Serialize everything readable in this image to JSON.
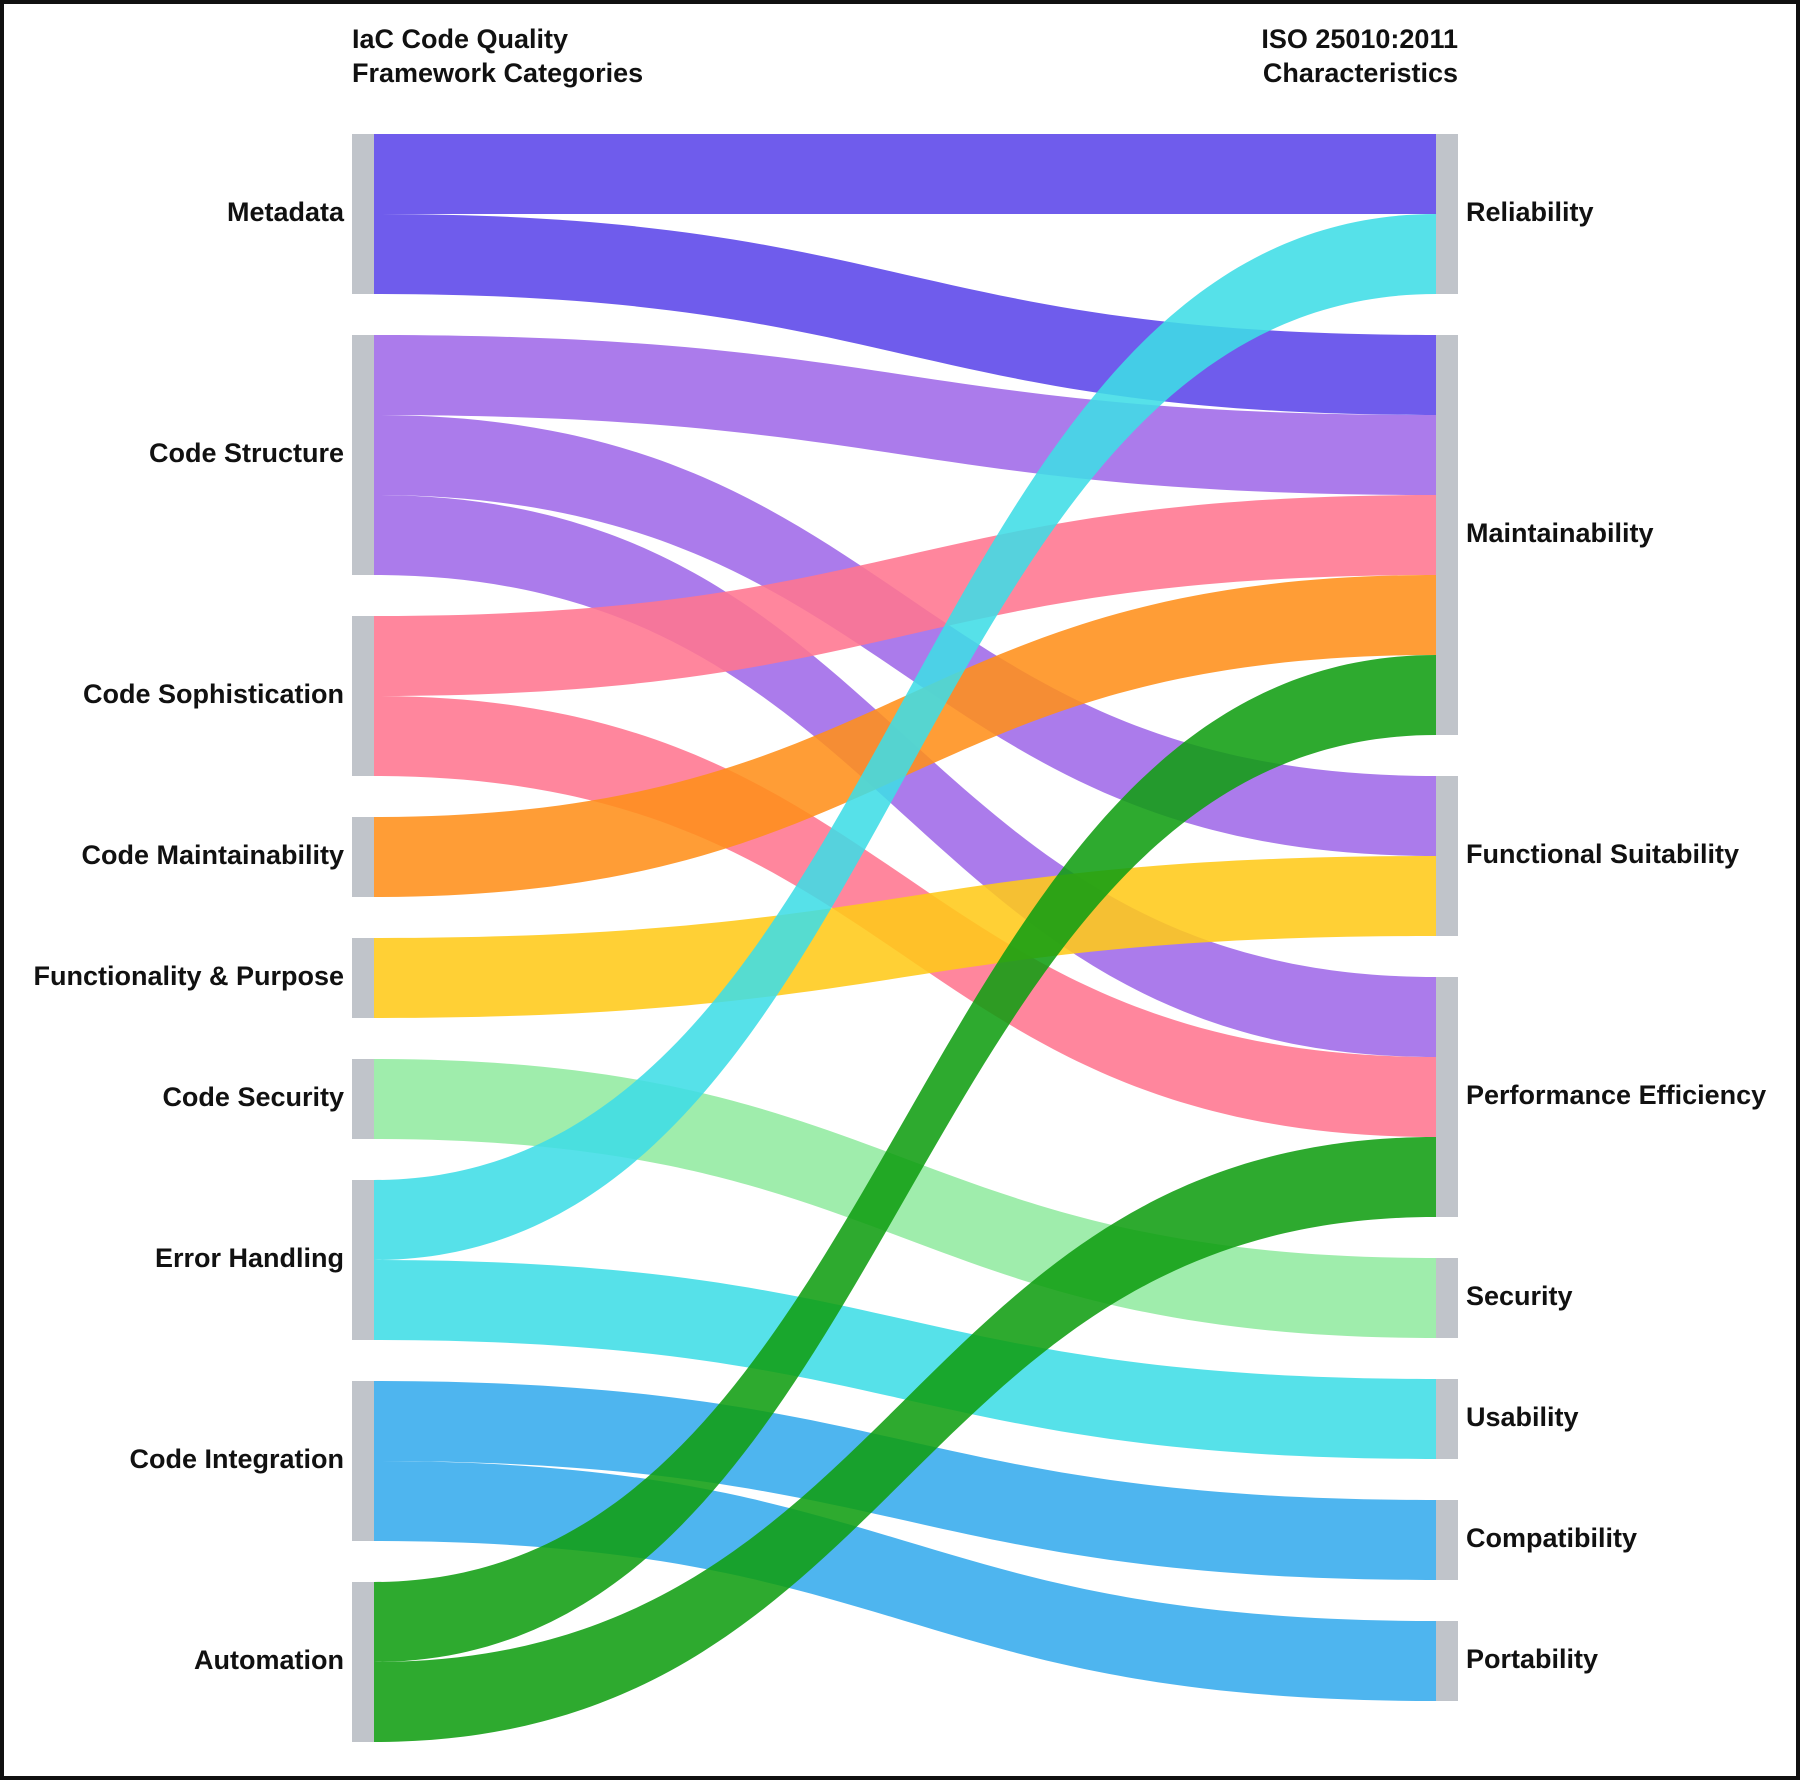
{
  "diagram": {
    "type": "sankey",
    "left_title": [
      "IaC Code Quality",
      "Framework Categories"
    ],
    "right_title": [
      "ISO 25010:2011",
      "Characteristics"
    ],
    "node_color": "#c0c4ca",
    "left_nodes": [
      {
        "id": "metadata",
        "label": "Metadata"
      },
      {
        "id": "code-structure",
        "label": "Code Structure"
      },
      {
        "id": "code-sophistication",
        "label": "Code Sophistication"
      },
      {
        "id": "code-maintainability",
        "label": "Code Maintainability"
      },
      {
        "id": "functionality-purpose",
        "label": "Functionality & Purpose"
      },
      {
        "id": "code-security",
        "label": "Code Security"
      },
      {
        "id": "error-handling",
        "label": "Error Handling"
      },
      {
        "id": "code-integration",
        "label": "Code Integration"
      },
      {
        "id": "automation",
        "label": "Automation"
      }
    ],
    "right_nodes": [
      {
        "id": "reliability",
        "label": "Reliability"
      },
      {
        "id": "maintainability",
        "label": "Maintainability"
      },
      {
        "id": "functional-suitability",
        "label": "Functional Suitability"
      },
      {
        "id": "performance-efficiency",
        "label": "Performance Efficiency"
      },
      {
        "id": "security",
        "label": "Security"
      },
      {
        "id": "usability",
        "label": "Usability"
      },
      {
        "id": "compatibility",
        "label": "Compatibility"
      },
      {
        "id": "portability",
        "label": "Portability"
      }
    ],
    "links": [
      {
        "source": "metadata",
        "target": "reliability",
        "value": 1,
        "color": "#5b45e9"
      },
      {
        "source": "metadata",
        "target": "maintainability",
        "value": 1,
        "color": "#5b45e9"
      },
      {
        "source": "code-structure",
        "target": "maintainability",
        "value": 1,
        "color": "#9f69e8"
      },
      {
        "source": "code-structure",
        "target": "functional-suitability",
        "value": 1,
        "color": "#9f69e8"
      },
      {
        "source": "code-structure",
        "target": "performance-efficiency",
        "value": 1,
        "color": "#9f69e8"
      },
      {
        "source": "code-sophistication",
        "target": "maintainability",
        "value": 1,
        "color": "#ff7590"
      },
      {
        "source": "code-sophistication",
        "target": "performance-efficiency",
        "value": 1,
        "color": "#ff7590"
      },
      {
        "source": "code-maintainability",
        "target": "maintainability",
        "value": 1,
        "color": "#ff8f1a"
      },
      {
        "source": "functionality-purpose",
        "target": "functional-suitability",
        "value": 1,
        "color": "#ffc919"
      },
      {
        "source": "code-security",
        "target": "security",
        "value": 1,
        "color": "#92eaa0"
      },
      {
        "source": "error-handling",
        "target": "reliability",
        "value": 1,
        "color": "#3fdde6"
      },
      {
        "source": "error-handling",
        "target": "usability",
        "value": 1,
        "color": "#3fdde6"
      },
      {
        "source": "code-integration",
        "target": "compatibility",
        "value": 1,
        "color": "#35abed"
      },
      {
        "source": "code-integration",
        "target": "portability",
        "value": 1,
        "color": "#35abed"
      },
      {
        "source": "automation",
        "target": "maintainability",
        "value": 1,
        "color": "#119e12"
      },
      {
        "source": "automation",
        "target": "performance-efficiency",
        "value": 1,
        "color": "#119e12"
      }
    ]
  }
}
